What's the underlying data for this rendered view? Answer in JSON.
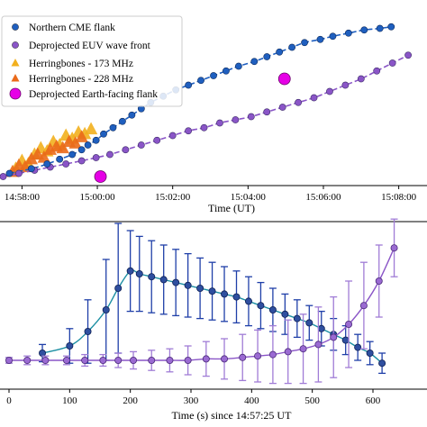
{
  "chart_data": [
    {
      "type": "scatter",
      "title": "",
      "xlabel": "Time (UT)",
      "ylabel": "",
      "x_ticks": [
        "14:58:00",
        "15:00:00",
        "15:02:00",
        "15:04:00",
        "15:06:00",
        "15:08:00"
      ],
      "xlim": [
        "14:57:25",
        "15:08:45"
      ],
      "legend_position": "top-left",
      "grid": false,
      "series": [
        {
          "name": "Northern CME flank",
          "color": "#1f5fbf",
          "marker": "circle",
          "x": [
            "14:57:40",
            "14:58:15",
            "14:58:40",
            "14:59:00",
            "14:59:20",
            "14:59:35",
            "14:59:45",
            "14:59:58",
            "15:00:10",
            "15:00:25",
            "15:00:40",
            "15:00:55",
            "15:01:10",
            "15:01:25",
            "15:01:45",
            "15:02:05",
            "15:02:25",
            "15:02:45",
            "15:03:05",
            "15:03:25",
            "15:03:45",
            "15:04:10",
            "15:04:30",
            "15:04:50",
            "15:05:10",
            "15:05:30",
            "15:05:55",
            "15:06:15",
            "15:06:40",
            "15:07:05",
            "15:07:30",
            "15:07:48"
          ],
          "y": [
            0.02,
            0.05,
            0.08,
            0.11,
            0.14,
            0.17,
            0.2,
            0.23,
            0.27,
            0.31,
            0.35,
            0.39,
            0.43,
            0.47,
            0.51,
            0.55,
            0.58,
            0.61,
            0.64,
            0.67,
            0.7,
            0.73,
            0.76,
            0.79,
            0.82,
            0.85,
            0.87,
            0.89,
            0.91,
            0.93,
            0.94,
            0.95
          ]
        },
        {
          "name": "Deprojected EUV wave front",
          "color": "#8a55c7",
          "marker": "circle",
          "x": [
            "14:57:30",
            "14:57:55",
            "14:58:20",
            "14:58:45",
            "14:59:10",
            "14:59:35",
            "14:59:58",
            "15:00:20",
            "15:00:45",
            "15:01:10",
            "15:01:35",
            "15:02:00",
            "15:02:25",
            "15:02:50",
            "15:03:15",
            "15:03:40",
            "15:04:05",
            "15:04:30",
            "15:04:55",
            "15:05:20",
            "15:05:45",
            "15:06:10",
            "15:06:35",
            "15:07:00",
            "15:07:25",
            "15:07:50",
            "15:08:15"
          ],
          "y": [
            0.0,
            0.02,
            0.04,
            0.06,
            0.08,
            0.1,
            0.12,
            0.14,
            0.17,
            0.2,
            0.23,
            0.26,
            0.29,
            0.31,
            0.34,
            0.36,
            0.38,
            0.41,
            0.44,
            0.47,
            0.5,
            0.54,
            0.58,
            0.62,
            0.67,
            0.72,
            0.77
          ]
        },
        {
          "name": "Herringbones - 173 MHz",
          "color": "#f2b01e",
          "marker": "triangle",
          "x": [
            "14:57:50",
            "14:58:00",
            "14:58:10",
            "14:58:20",
            "14:58:30",
            "14:58:40",
            "14:58:50",
            "14:59:00",
            "14:59:10",
            "14:59:20",
            "14:59:30",
            "14:59:40",
            "14:59:50"
          ],
          "y": [
            0.05,
            0.1,
            0.08,
            0.14,
            0.18,
            0.16,
            0.22,
            0.2,
            0.26,
            0.24,
            0.28,
            0.27,
            0.3
          ]
        },
        {
          "name": "Herringbones - 228 MHz",
          "color": "#ea6a1a",
          "marker": "triangle",
          "x": [
            "14:57:45",
            "14:57:55",
            "14:58:05",
            "14:58:15",
            "14:58:25",
            "14:58:35",
            "14:58:45",
            "14:58:55",
            "14:59:05",
            "14:59:15",
            "14:59:25",
            "14:59:35"
          ],
          "y": [
            0.03,
            0.07,
            0.06,
            0.11,
            0.14,
            0.12,
            0.17,
            0.19,
            0.18,
            0.22,
            0.21,
            0.25
          ]
        },
        {
          "name": "Deprojected Earth-facing flank",
          "color": "#e600e6",
          "marker": "large-circle",
          "x": [
            "15:00:05",
            "15:04:58"
          ],
          "y": [
            0.0,
            0.62
          ]
        }
      ]
    },
    {
      "type": "line",
      "title": "",
      "xlabel": "Time (s) since 14:57:25 UT",
      "ylabel": "",
      "x_ticks": [
        0,
        100,
        200,
        300,
        400,
        500,
        600
      ],
      "xlim": [
        -10,
        680
      ],
      "grid": false,
      "series": [
        {
          "color": "#1f3fa8",
          "x": [
            55,
            100,
            130,
            160,
            180,
            200,
            215,
            235,
            255,
            275,
            295,
            315,
            335,
            355,
            375,
            395,
            415,
            435,
            455,
            475,
            495,
            515,
            535,
            555,
            575,
            595,
            615
          ],
          "y": [
            0.05,
            0.1,
            0.2,
            0.35,
            0.5,
            0.62,
            0.6,
            0.58,
            0.56,
            0.54,
            0.52,
            0.5,
            0.48,
            0.46,
            0.44,
            0.41,
            0.38,
            0.35,
            0.32,
            0.29,
            0.26,
            0.22,
            0.18,
            0.14,
            0.09,
            0.05,
            -0.02
          ],
          "err": [
            0.06,
            0.12,
            0.22,
            0.35,
            0.45,
            0.28,
            0.26,
            0.25,
            0.24,
            0.23,
            0.22,
            0.21,
            0.2,
            0.19,
            0.18,
            0.17,
            0.16,
            0.15,
            0.14,
            0.13,
            0.12,
            0.12,
            0.11,
            0.1,
            0.09,
            0.08,
            0.07
          ]
        },
        {
          "color": "#8a55c7",
          "x": [
            0,
            30,
            60,
            95,
            125,
            155,
            180,
            205,
            235,
            265,
            295,
            325,
            355,
            385,
            410,
            435,
            460,
            485,
            510,
            535,
            560,
            585,
            610,
            635
          ],
          "y": [
            0.0,
            0.0,
            0.0,
            0.0,
            0.0,
            0.0,
            0.0,
            0.0,
            0.0,
            0.0,
            0.0,
            0.01,
            0.01,
            0.02,
            0.03,
            0.04,
            0.06,
            0.08,
            0.11,
            0.16,
            0.25,
            0.38,
            0.55,
            0.78
          ],
          "err": [
            0.02,
            0.03,
            0.03,
            0.03,
            0.04,
            0.04,
            0.05,
            0.06,
            0.07,
            0.08,
            0.1,
            0.12,
            0.14,
            0.16,
            0.18,
            0.2,
            0.22,
            0.24,
            0.26,
            0.28,
            0.3,
            0.3,
            0.25,
            0.2
          ]
        }
      ]
    }
  ]
}
